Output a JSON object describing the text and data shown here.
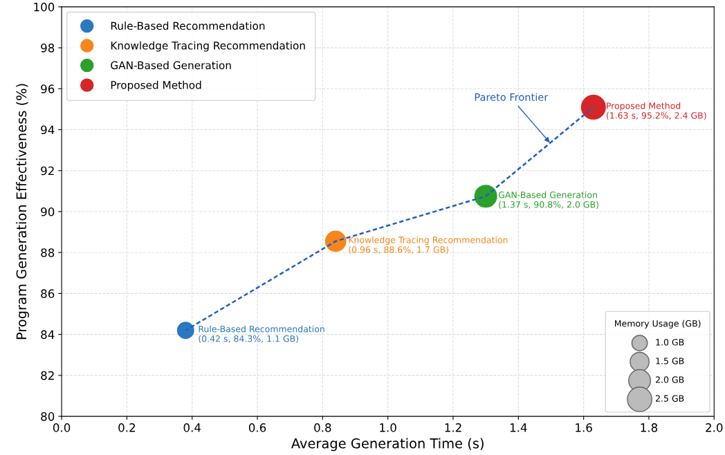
{
  "chart_data": {
    "type": "bubble",
    "xlabel": "Average Generation Time (s)",
    "ylabel": "Program Generation Effectiveness (%)",
    "xlim": [
      0.0,
      2.0
    ],
    "xticks": [
      {
        "value": 0.0,
        "label": "0.0"
      },
      {
        "value": 0.2,
        "label": "0.2"
      },
      {
        "value": 0.4,
        "label": "0.4"
      },
      {
        "value": 0.6,
        "label": "0.6"
      },
      {
        "value": 0.8,
        "label": "0.8"
      },
      {
        "value": 1.0,
        "label": "1.0"
      },
      {
        "value": 1.2,
        "label": "1.2"
      },
      {
        "value": 1.4,
        "label": "1.4"
      },
      {
        "value": 1.6,
        "label": "1.6"
      },
      {
        "value": 1.8,
        "label": "1.8"
      },
      {
        "value": 2.0,
        "label": "2.0"
      }
    ],
    "ylim": [
      80,
      100
    ],
    "yticks": [
      80,
      82,
      84,
      86,
      88,
      90,
      92,
      94,
      96,
      98,
      100
    ],
    "grid": true,
    "legend": "top left",
    "legend_title": "Memory Usage (GB)",
    "size_legend": [
      {
        "value": 1.0,
        "label": "1.0 GB"
      },
      {
        "value": 1.5,
        "label": "1.5 GB"
      },
      {
        "value": 2.0,
        "label": "2.0 GB"
      },
      {
        "value": 2.5,
        "label": "2.5 GB"
      }
    ],
    "series": [
      {
        "type": "line",
        "color": "#1f5fc4",
        "line_style": "dashed",
        "x": [
          0.38,
          0.84,
          1.3,
          1.63
        ],
        "values": [
          84.2,
          88.55,
          90.75,
          95.1
        ]
      },
      {
        "name": "Rule-Based Recommendation",
        "color": "#2a78c0",
        "x": [
          0.38
        ],
        "values": [
          84.2
        ],
        "sizes": [
          1.1
        ]
      },
      {
        "name": "Knowledge Tracing Recommendation",
        "color": "#f7851b",
        "x": [
          0.84
        ],
        "values": [
          88.55
        ],
        "sizes": [
          1.7
        ]
      },
      {
        "name": "GAN-Based Generation",
        "color": "#2ca02c",
        "x": [
          1.3
        ],
        "values": [
          90.75
        ],
        "sizes": [
          2.0
        ]
      },
      {
        "name": "Proposed Method",
        "color": "#d62728",
        "x": [
          1.63
        ],
        "values": [
          95.1
        ],
        "sizes": [
          2.4
        ]
      }
    ],
    "annotations": [
      {
        "text": "Rule-Based Recommendation\n(0.42 s, 84.3%, 1.1 GB)",
        "x": 0.38,
        "y": 84.2
      },
      {
        "text": "Knowledge Tracing Recommendation\n(0.96 s, 88.6%, 1.7 GB)",
        "x": 0.84,
        "y": 88.55
      },
      {
        "text": "GAN-Based Generation\n(1.37 s, 90.8%, 2.0 GB)",
        "x": 1.3,
        "y": 90.75
      },
      {
        "text": "Proposed Method\n(1.63 s, 95.2%, 2.4 GB)",
        "x": 1.63,
        "y": 95.1
      },
      {
        "text": "Pareto Frontier",
        "x": 1.5,
        "y": 93.3
      }
    ]
  }
}
